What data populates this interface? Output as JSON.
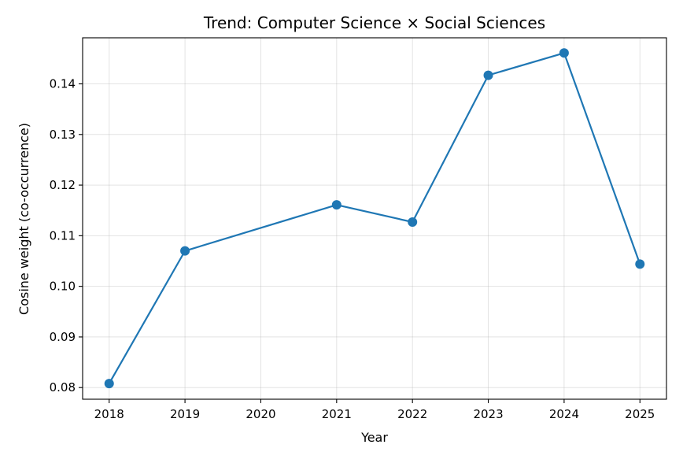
{
  "chart_data": {
    "type": "line",
    "title": "Trend: Computer Science × Social Sciences",
    "xlabel": "Year",
    "ylabel": "Cosine weight (co-occurrence)",
    "x": [
      2018,
      2019,
      2021,
      2022,
      2023,
      2024,
      2025
    ],
    "xticks": [
      "2018",
      "2019",
      "2020",
      "2021",
      "2022",
      "2023",
      "2024",
      "2025"
    ],
    "xlim": [
      2017.65,
      2025.35
    ],
    "yticks": [
      "0.08",
      "0.09",
      "0.10",
      "0.11",
      "0.12",
      "0.13",
      "0.14"
    ],
    "ylim": [
      0.0777,
      0.1491
    ],
    "series": [
      {
        "values": [
          0.0808,
          0.107,
          0.1161,
          0.1127,
          0.1417,
          0.1461,
          0.1044
        ],
        "color": "#1f77b4",
        "marker": "circle"
      }
    ],
    "grid": true
  }
}
